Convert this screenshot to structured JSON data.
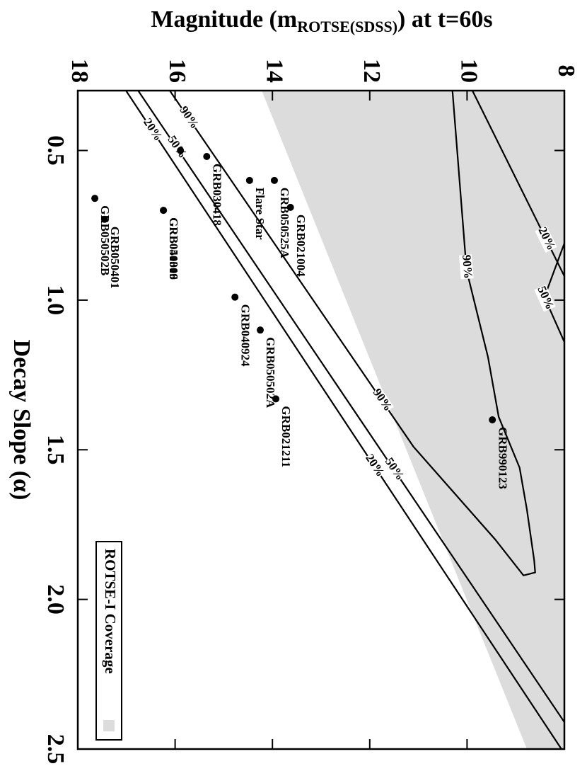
{
  "chart_data": {
    "type": "scatter",
    "title_parts": [
      "Magnitude (m",
      "ROTSE(SDSS)",
      ") at t=60s"
    ],
    "x_label": "Decay Slope (α)",
    "xlim": [
      0.3,
      2.5
    ],
    "xticks": [
      0.5,
      {
        "value": 1,
        "label": "1.0"
      },
      1.5,
      {
        "value": 2,
        "label": "2.0"
      },
      2.5
    ],
    "ylim": [
      18,
      8
    ],
    "yticks": [
      8,
      10,
      12,
      14,
      16,
      18
    ],
    "point_color": "#000000",
    "labels": [
      "GRB990123",
      "GRB021004",
      "GRB050525A",
      "Flare Star",
      "GRB030418",
      null,
      "GRB050502B",
      "GRB050401",
      "GRB041006",
      "GRB050319",
      "GRB040924",
      "GRB050502A",
      "GRB021211"
    ],
    "x": [
      1.4,
      0.69,
      0.6,
      0.6,
      0.52,
      0.5,
      0.66,
      0.73,
      0.7,
      0.7,
      0.99,
      1.1,
      1.33
    ],
    "y": [
      9.48,
      13.63,
      13.96,
      14.47,
      15.35,
      15.89,
      17.65,
      17.45,
      16.24,
      16.24,
      14.77,
      14.25,
      13.93
    ],
    "contours": [
      {
        "label": "20%",
        "x": [
          0.3,
          2.5
        ],
        "y": [
          17.01,
          8.06
        ]
      },
      {
        "label": "50%",
        "x": [
          0.3,
          2.41
        ],
        "y": [
          16.76,
          8.0
        ]
      },
      {
        "label": "90%",
        "x": [
          0.3,
          1.49,
          1.8,
          1.92,
          1.91,
          1.87,
          1.7,
          1.56,
          1.39,
          1.19,
          0.9,
          0.3
        ],
        "y": [
          16.11,
          11.1,
          9.42,
          8.84,
          8.6,
          8.62,
          8.77,
          8.92,
          9.35,
          9.57,
          10.01,
          10.3
        ]
      },
      {
        "label": "20%",
        "x": [
          0.3,
          0.92
        ],
        "y": [
          9.89,
          8.0
        ]
      },
      {
        "label": "50%",
        "x": [
          0.81,
          0.99,
          1.14
        ],
        "y": [
          8.0,
          8.41,
          8.0
        ]
      }
    ],
    "coverage": {
      "label": "ROTSE-I Coverage",
      "color": "#dcdcdc",
      "x": [
        0.3,
        2.5
      ],
      "y": [
        14.22,
        8.77
      ]
    }
  }
}
